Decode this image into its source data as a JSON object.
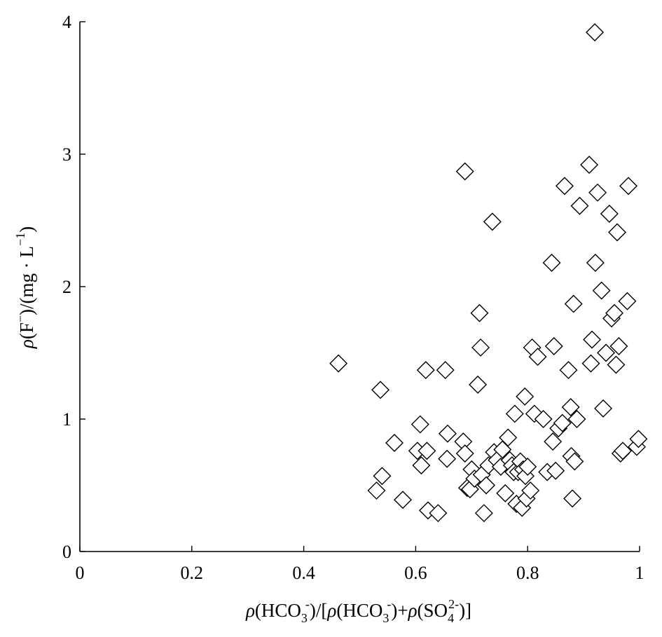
{
  "chart_data": {
    "type": "scatter",
    "marker": "diamond",
    "marker_fill": "#ffffff",
    "marker_stroke": "#000000",
    "xlim": [
      0,
      1
    ],
    "ylim": [
      0,
      4
    ],
    "x_ticks": [
      0,
      0.2,
      0.4,
      0.6,
      0.8,
      1
    ],
    "x_tick_labels": [
      "0",
      "0.2",
      "0.4",
      "0.6",
      "0.8",
      "1"
    ],
    "y_ticks": [
      0,
      1,
      2,
      3,
      4
    ],
    "y_tick_labels": [
      "0",
      "1",
      "2",
      "3",
      "4"
    ],
    "grid": false,
    "xlabel": {
      "rho": "ρ",
      "p1": "(HCO",
      "sub1": "3",
      "sup1": "-",
      "p2": ")/[",
      "p3": "(HCO",
      "sub2": "3",
      "sup2": "-",
      "p4": ")+",
      "p5": "(SO",
      "sub3": "4",
      "sup3": "2-",
      "p6": ")]"
    },
    "ylabel": {
      "rho": "ρ",
      "p1": "(F",
      "sup1": "−",
      "p2": ")/(mg · L",
      "sup2": "−1",
      "p3": ")"
    },
    "points": [
      [
        0.462,
        1.42
      ],
      [
        0.53,
        0.46
      ],
      [
        0.537,
        1.22
      ],
      [
        0.54,
        0.57
      ],
      [
        0.562,
        0.82
      ],
      [
        0.577,
        0.39
      ],
      [
        0.603,
        0.76
      ],
      [
        0.608,
        0.96
      ],
      [
        0.61,
        0.65
      ],
      [
        0.618,
        1.37
      ],
      [
        0.62,
        0.76
      ],
      [
        0.622,
        0.31
      ],
      [
        0.64,
        0.29
      ],
      [
        0.653,
        1.37
      ],
      [
        0.656,
        0.7
      ],
      [
        0.657,
        0.89
      ],
      [
        0.685,
        0.83
      ],
      [
        0.688,
        0.74
      ],
      [
        0.688,
        2.87
      ],
      [
        0.692,
        0.48
      ],
      [
        0.697,
        0.47
      ],
      [
        0.7,
        0.62
      ],
      [
        0.705,
        0.55
      ],
      [
        0.711,
        1.26
      ],
      [
        0.714,
        1.8
      ],
      [
        0.716,
        1.54
      ],
      [
        0.718,
        0.58
      ],
      [
        0.722,
        0.29
      ],
      [
        0.726,
        0.5
      ],
      [
        0.73,
        0.65
      ],
      [
        0.737,
        2.49
      ],
      [
        0.74,
        0.75
      ],
      [
        0.745,
        0.69
      ],
      [
        0.752,
        0.64
      ],
      [
        0.755,
        0.77
      ],
      [
        0.76,
        0.44
      ],
      [
        0.765,
        0.86
      ],
      [
        0.768,
        0.69
      ],
      [
        0.772,
        0.65
      ],
      [
        0.775,
        0.6
      ],
      [
        0.777,
        1.04
      ],
      [
        0.78,
        0.36
      ],
      [
        0.783,
        0.6
      ],
      [
        0.787,
        0.68
      ],
      [
        0.79,
        0.33
      ],
      [
        0.792,
        0.62
      ],
      [
        0.795,
        1.17
      ],
      [
        0.796,
        0.57
      ],
      [
        0.798,
        0.4
      ],
      [
        0.8,
        0.64
      ],
      [
        0.805,
        0.46
      ],
      [
        0.808,
        1.54
      ],
      [
        0.812,
        1.04
      ],
      [
        0.818,
        1.47
      ],
      [
        0.828,
        1.0
      ],
      [
        0.835,
        0.6
      ],
      [
        0.843,
        2.18
      ],
      [
        0.845,
        0.83
      ],
      [
        0.847,
        1.55
      ],
      [
        0.85,
        0.61
      ],
      [
        0.855,
        0.93
      ],
      [
        0.862,
        0.97
      ],
      [
        0.866,
        2.76
      ],
      [
        0.873,
        1.37
      ],
      [
        0.877,
        1.09
      ],
      [
        0.878,
        0.72
      ],
      [
        0.88,
        0.4
      ],
      [
        0.882,
        1.87
      ],
      [
        0.884,
        0.68
      ],
      [
        0.888,
        1.0
      ],
      [
        0.893,
        2.61
      ],
      [
        0.91,
        2.92
      ],
      [
        0.913,
        1.42
      ],
      [
        0.915,
        1.6
      ],
      [
        0.92,
        3.92
      ],
      [
        0.921,
        2.18
      ],
      [
        0.925,
        2.71
      ],
      [
        0.932,
        1.97
      ],
      [
        0.935,
        1.08
      ],
      [
        0.94,
        1.5
      ],
      [
        0.946,
        2.55
      ],
      [
        0.95,
        1.76
      ],
      [
        0.955,
        1.8
      ],
      [
        0.958,
        1.41
      ],
      [
        0.96,
        2.41
      ],
      [
        0.963,
        1.55
      ],
      [
        0.966,
        0.74
      ],
      [
        0.97,
        0.76
      ],
      [
        0.978,
        1.89
      ],
      [
        0.98,
        2.76
      ],
      [
        0.995,
        0.79
      ],
      [
        0.998,
        0.85
      ]
    ]
  }
}
